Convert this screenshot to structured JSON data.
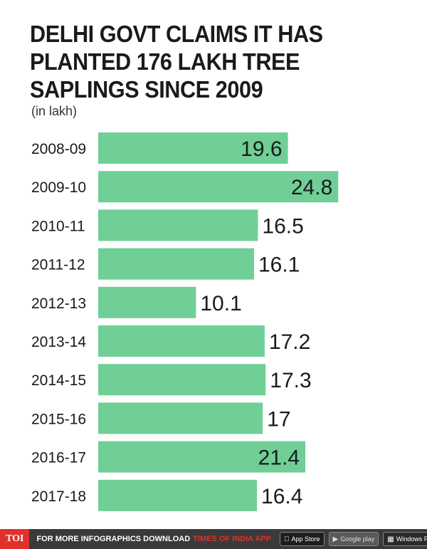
{
  "title": "DELHI GOVT CLAIMS IT HAS PLANTED 176 LAKH TREE SAPLINGS SINCE 2009",
  "subtitle": "(in lakh)",
  "chart_data": {
    "type": "bar",
    "orientation": "horizontal",
    "categories": [
      "2008-09",
      "2009-10",
      "2010-11",
      "2011-12",
      "2012-13",
      "2013-14",
      "2014-15",
      "2015-16",
      "2016-17",
      "2017-18"
    ],
    "values": [
      19.6,
      24.8,
      16.5,
      16.1,
      10.1,
      17.2,
      17.3,
      17,
      21.4,
      16.4
    ],
    "value_labels": [
      "19.6",
      "24.8",
      "16.5",
      "16.1",
      "10.1",
      "17.2",
      "17.3",
      "17",
      "21.4",
      "16.4"
    ],
    "labels_inside": [
      true,
      true,
      false,
      false,
      false,
      false,
      false,
      false,
      true,
      false
    ],
    "bar_color": "#6fcf97",
    "xlim": [
      0,
      30
    ],
    "grid": false
  },
  "footer": {
    "brand": "TOI",
    "text": "FOR MORE INFOGRAPHICS DOWNLOAD",
    "app": "TIMES OF INDIA APP",
    "appstore": "App Store",
    "googleplay": "Google play",
    "windows": "Windows Phone"
  },
  "colors": {
    "footer_bg": "#3a3a3a",
    "toi_red": "#e0302b"
  }
}
